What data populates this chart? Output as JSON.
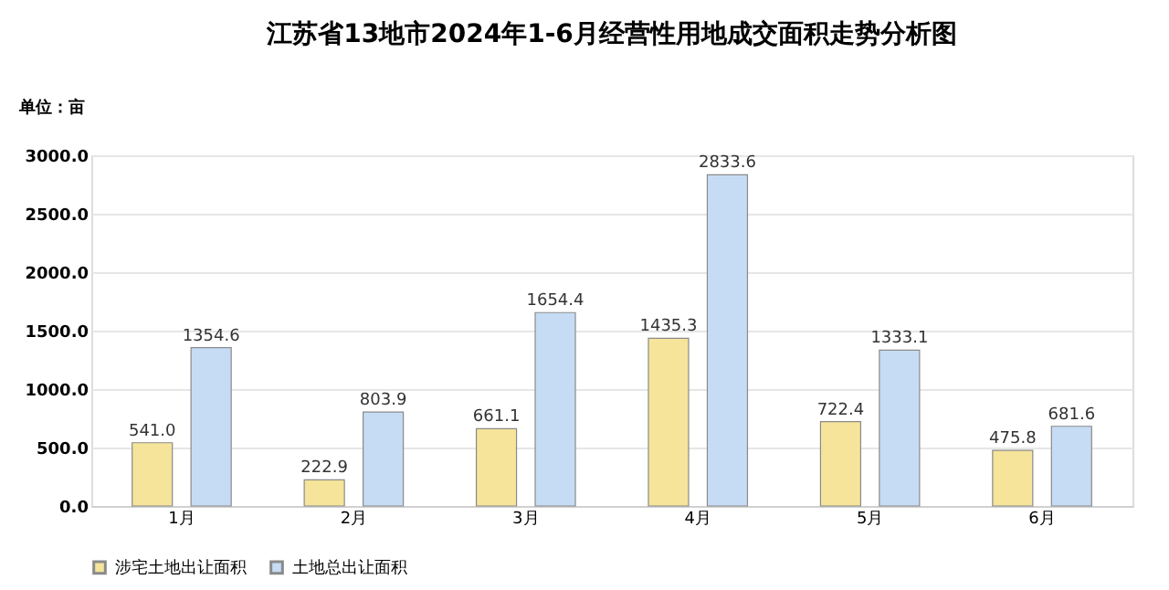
{
  "chart_data": {
    "type": "bar",
    "title": "江苏省13地市2024年1-6月经营性用地成交面积走势分析图",
    "ylabel": "单位：亩",
    "categories": [
      "1月",
      "2月",
      "3月",
      "4月",
      "5月",
      "6月"
    ],
    "series": [
      {
        "name": "涉宅土地出让面积",
        "color": "#f5e49a",
        "values": [
          541.0,
          222.9,
          661.1,
          1435.3,
          722.4,
          475.8
        ],
        "value_labels": [
          "541.0",
          "222.9",
          "661.1",
          "1435.3",
          "722.4",
          "475.8"
        ]
      },
      {
        "name": "土地总出让面积",
        "color": "#c6dcf4",
        "values": [
          1354.6,
          803.9,
          1654.4,
          2833.6,
          1333.1,
          681.6
        ],
        "value_labels": [
          "1354.6",
          "803.9",
          "1654.4",
          "2833.6",
          "1333.1",
          "681.6"
        ]
      }
    ],
    "ylim": [
      0,
      3000
    ],
    "yticks": [
      {
        "value": 0,
        "label": "0.0"
      },
      {
        "value": 500,
        "label": "500.0"
      },
      {
        "value": 1000,
        "label": "1000.0"
      },
      {
        "value": 1500,
        "label": "1500.0"
      },
      {
        "value": 2000,
        "label": "2000.0"
      },
      {
        "value": 2500,
        "label": "2500.0"
      },
      {
        "value": 3000,
        "label": "3000.0"
      }
    ],
    "grid": "y",
    "legend": "bottom",
    "data_labels": true
  }
}
